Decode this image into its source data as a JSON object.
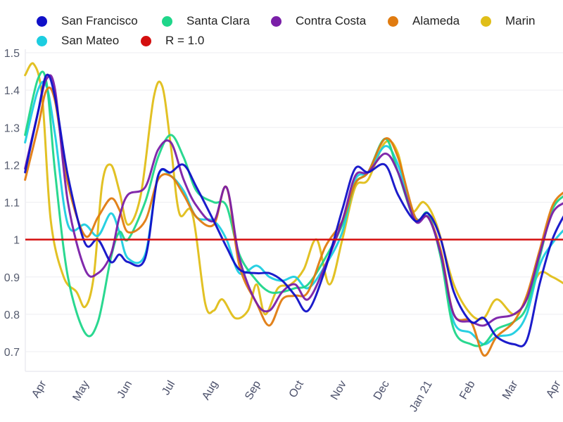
{
  "chart_data": {
    "type": "line",
    "title": "",
    "xlabel": "",
    "ylabel": "",
    "ylim": [
      0.64,
      1.51
    ],
    "yticks": [
      0.7,
      0.8,
      0.9,
      1,
      1.1,
      1.2,
      1.3,
      1.4,
      1.5
    ],
    "ytick_labels": [
      "0.7",
      "0.8",
      "0.9",
      "1",
      "1.1",
      "1.2",
      "1.3",
      "1.4",
      "1.5"
    ],
    "x_unit": "months since Apr 2020",
    "xlim": [
      -0.4,
      12.2
    ],
    "xticks": [
      0,
      1,
      2,
      3,
      4,
      5,
      6,
      7,
      8,
      9,
      10,
      11,
      12
    ],
    "xtick_labels": [
      "Apr",
      "May",
      "Jun",
      "Jul",
      "Aug",
      "Sep",
      "Oct",
      "Nov",
      "Dec",
      "Jan 21",
      "Feb",
      "Mar",
      "Apr"
    ],
    "grid": true,
    "legend_position": "top",
    "reference_line": {
      "name": "R = 1.0",
      "value": 1.0,
      "color": "#d40f0f"
    },
    "series": [
      {
        "name": "San Francisco",
        "color": "#1010c8",
        "x": [
          -0.4,
          -0.1,
          0.1,
          0.3,
          0.6,
          1.0,
          1.3,
          1.6,
          1.8,
          2.0,
          2.4,
          2.7,
          3.0,
          3.3,
          3.6,
          4.0,
          4.3,
          4.6,
          5.0,
          5.3,
          5.6,
          5.9,
          6.2,
          6.6,
          7.0,
          7.3,
          7.6,
          8.0,
          8.3,
          8.7,
          9.0,
          9.3,
          9.6,
          10.0,
          10.3,
          10.6,
          11.0,
          11.3,
          11.6,
          11.9,
          12.2
        ],
        "y": [
          1.18,
          1.34,
          1.44,
          1.38,
          1.17,
          0.99,
          1.0,
          0.94,
          0.96,
          0.94,
          0.95,
          1.17,
          1.18,
          1.2,
          1.14,
          1.05,
          0.98,
          0.92,
          0.91,
          0.91,
          0.89,
          0.85,
          0.81,
          0.92,
          1.08,
          1.19,
          1.18,
          1.2,
          1.12,
          1.05,
          1.07,
          1.0,
          0.86,
          0.78,
          0.79,
          0.74,
          0.72,
          0.73,
          0.88,
          1.0,
          1.07
        ]
      },
      {
        "name": "Santa Clara",
        "color": "#1fd68a",
        "x": [
          -0.4,
          -0.1,
          0.1,
          0.3,
          0.6,
          1.0,
          1.3,
          1.6,
          1.8,
          2.0,
          2.4,
          2.7,
          3.0,
          3.3,
          3.6,
          4.0,
          4.3,
          4.6,
          5.0,
          5.3,
          5.6,
          5.9,
          6.2,
          6.6,
          7.0,
          7.3,
          7.6,
          8.0,
          8.3,
          8.7,
          9.0,
          9.3,
          9.6,
          10.0,
          10.3,
          10.6,
          11.0,
          11.3,
          11.6,
          11.9,
          12.2
        ],
        "y": [
          1.28,
          1.43,
          1.42,
          1.18,
          0.9,
          0.75,
          0.78,
          0.95,
          1.02,
          1.0,
          1.1,
          1.22,
          1.28,
          1.22,
          1.13,
          1.1,
          1.09,
          0.96,
          0.89,
          0.86,
          0.86,
          0.87,
          0.88,
          0.95,
          1.04,
          1.15,
          1.18,
          1.27,
          1.18,
          1.05,
          1.07,
          0.95,
          0.76,
          0.72,
          0.72,
          0.76,
          0.78,
          0.82,
          0.95,
          1.08,
          1.12
        ]
      },
      {
        "name": "Contra Costa",
        "color": "#7a1fa8",
        "x": [
          -0.4,
          -0.1,
          0.1,
          0.3,
          0.6,
          1.0,
          1.3,
          1.6,
          1.8,
          2.0,
          2.4,
          2.7,
          3.0,
          3.3,
          3.6,
          4.0,
          4.3,
          4.6,
          5.0,
          5.3,
          5.6,
          5.9,
          6.2,
          6.6,
          7.0,
          7.3,
          7.6,
          8.0,
          8.3,
          8.7,
          9.0,
          9.3,
          9.6,
          10.0,
          10.3,
          10.6,
          11.0,
          11.3,
          11.6,
          11.9,
          12.2
        ],
        "y": [
          1.19,
          1.34,
          1.43,
          1.4,
          1.1,
          0.92,
          0.91,
          0.96,
          1.06,
          1.12,
          1.14,
          1.24,
          1.26,
          1.16,
          1.09,
          1.05,
          1.14,
          0.95,
          0.83,
          0.81,
          0.86,
          0.88,
          0.84,
          0.93,
          1.05,
          1.17,
          1.18,
          1.23,
          1.18,
          1.05,
          1.06,
          0.96,
          0.8,
          0.78,
          0.77,
          0.79,
          0.8,
          0.84,
          0.96,
          1.07,
          1.1
        ]
      },
      {
        "name": "Alameda",
        "color": "#e07b10",
        "x": [
          -0.4,
          -0.1,
          0.1,
          0.3,
          0.6,
          1.0,
          1.3,
          1.6,
          1.8,
          2.0,
          2.4,
          2.7,
          3.0,
          3.3,
          3.6,
          4.0,
          4.3,
          4.6,
          5.0,
          5.3,
          5.6,
          5.9,
          6.2,
          6.6,
          7.0,
          7.3,
          7.6,
          8.0,
          8.3,
          8.7,
          9.0,
          9.3,
          9.6,
          10.0,
          10.3,
          10.6,
          11.0,
          11.3,
          11.6,
          11.9,
          12.2
        ],
        "y": [
          1.16,
          1.3,
          1.4,
          1.37,
          1.15,
          1.01,
          1.06,
          1.11,
          1.08,
          1.02,
          1.05,
          1.16,
          1.17,
          1.12,
          1.06,
          1.04,
          1.14,
          0.93,
          0.83,
          0.77,
          0.84,
          0.85,
          0.86,
          0.98,
          1.05,
          1.15,
          1.18,
          1.27,
          1.22,
          1.06,
          1.06,
          0.97,
          0.8,
          0.78,
          0.69,
          0.74,
          0.78,
          0.85,
          0.97,
          1.09,
          1.13
        ]
      },
      {
        "name": "Marin",
        "color": "#e0be18",
        "x": [
          -0.4,
          -0.2,
          0.0,
          0.2,
          0.5,
          0.8,
          1.0,
          1.2,
          1.4,
          1.6,
          1.8,
          2.0,
          2.3,
          2.6,
          2.8,
          3.0,
          3.2,
          3.5,
          3.8,
          4.0,
          4.2,
          4.5,
          4.8,
          5.0,
          5.2,
          5.5,
          5.8,
          6.1,
          6.4,
          6.7,
          7.0,
          7.3,
          7.6,
          8.0,
          8.3,
          8.6,
          8.9,
          9.2,
          9.6,
          10.0,
          10.3,
          10.6,
          11.0,
          11.3,
          11.6,
          11.9,
          12.2
        ],
        "y": [
          1.44,
          1.47,
          1.38,
          1.05,
          0.9,
          0.86,
          0.82,
          0.9,
          1.15,
          1.2,
          1.13,
          1.04,
          1.12,
          1.38,
          1.41,
          1.25,
          1.07,
          1.07,
          0.83,
          0.81,
          0.84,
          0.79,
          0.81,
          0.88,
          0.8,
          0.87,
          0.88,
          0.92,
          1.0,
          0.88,
          1.0,
          1.14,
          1.16,
          1.26,
          1.23,
          1.08,
          1.1,
          1.04,
          0.88,
          0.8,
          0.79,
          0.84,
          0.8,
          0.84,
          0.91,
          0.9,
          0.88
        ]
      },
      {
        "name": "San Mateo",
        "color": "#1ccde0",
        "x": [
          -0.4,
          -0.1,
          0.1,
          0.3,
          0.6,
          1.0,
          1.3,
          1.6,
          1.8,
          2.0,
          2.4,
          2.7,
          3.0,
          3.3,
          3.6,
          4.0,
          4.3,
          4.6,
          5.0,
          5.3,
          5.6,
          5.9,
          6.2,
          6.6,
          7.0,
          7.3,
          7.6,
          8.0,
          8.3,
          8.7,
          9.0,
          9.3,
          9.6,
          10.0,
          10.3,
          10.6,
          11.0,
          11.3,
          11.6,
          11.9,
          12.2
        ],
        "y": [
          1.26,
          1.4,
          1.41,
          1.28,
          1.04,
          1.04,
          1.01,
          1.07,
          1.02,
          0.95,
          0.96,
          1.17,
          1.17,
          1.13,
          1.06,
          1.05,
          1.0,
          0.91,
          0.93,
          0.9,
          0.89,
          0.9,
          0.87,
          0.93,
          1.02,
          1.16,
          1.18,
          1.25,
          1.2,
          1.06,
          1.06,
          0.96,
          0.78,
          0.75,
          0.72,
          0.74,
          0.75,
          0.8,
          0.93,
          0.99,
          1.03
        ]
      }
    ]
  }
}
